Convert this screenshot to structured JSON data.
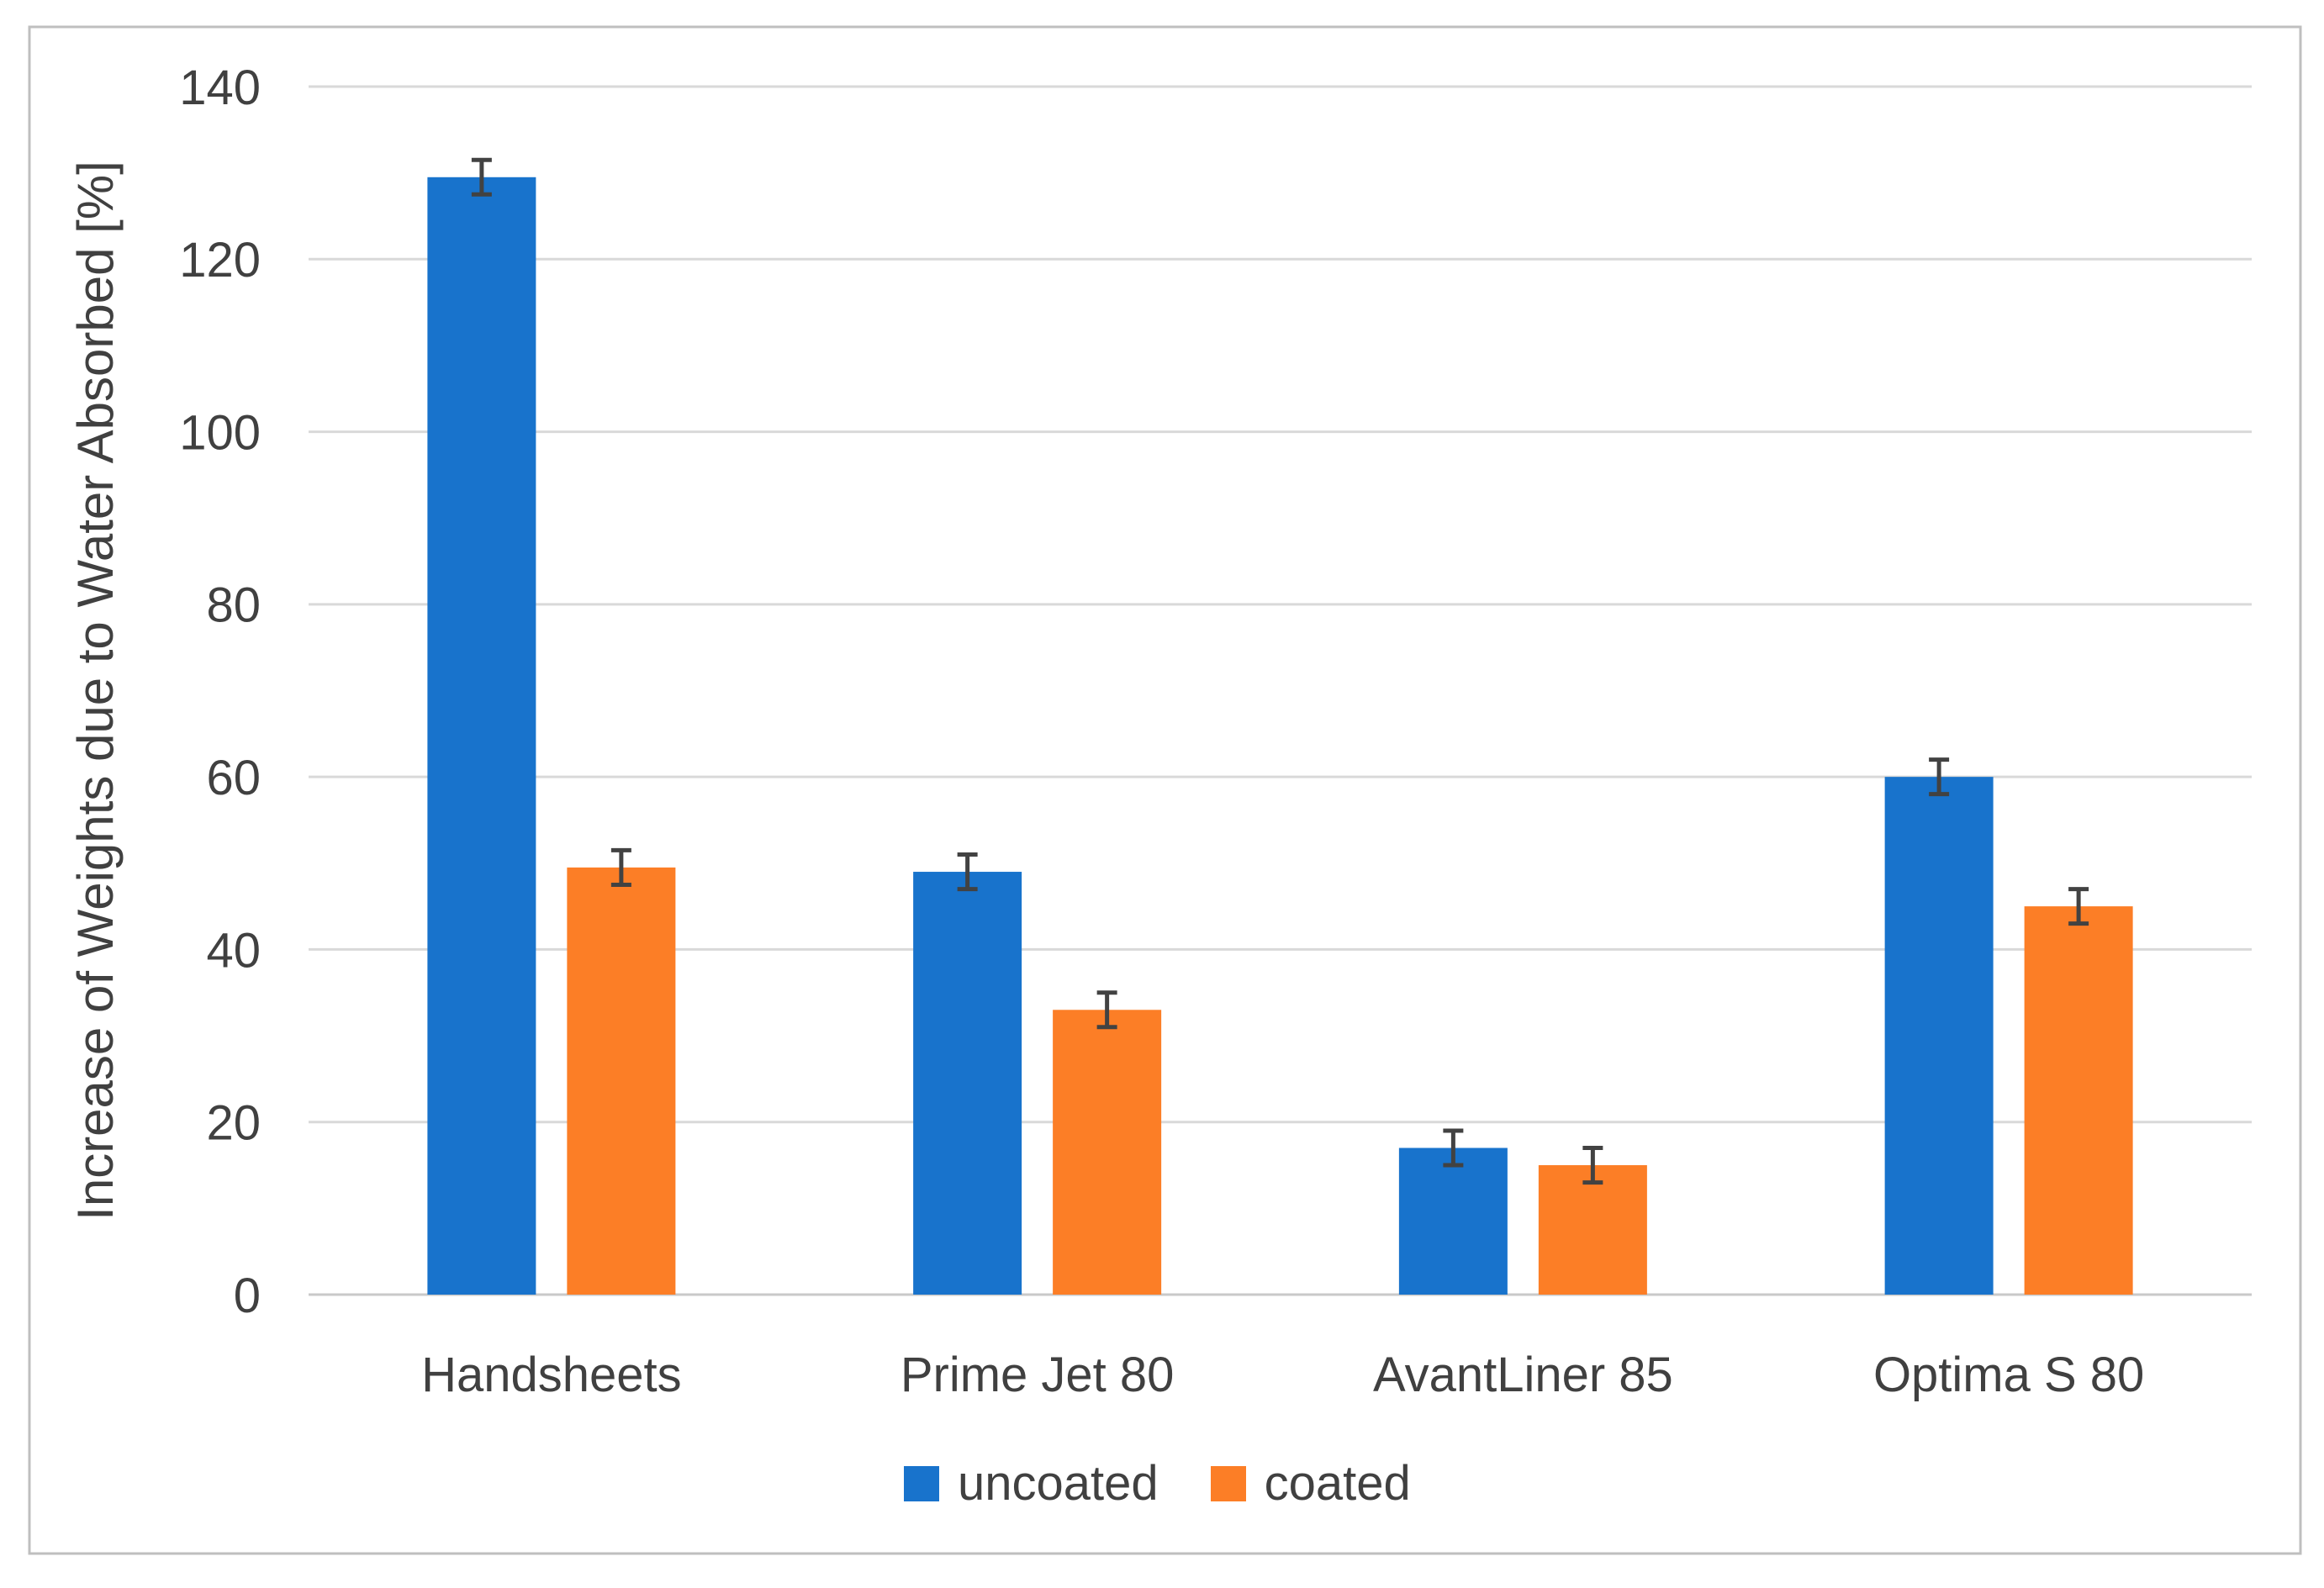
{
  "figure": {
    "background": "#ffffff",
    "border_color": "#bfbfbf",
    "text_color": "#404040",
    "gridline_color": "#d9d9d9",
    "axis_line_color": "#c9c9c9",
    "error_bar_color": "#424242"
  },
  "chart_data": {
    "type": "bar",
    "title": "",
    "categories": [
      "Handsheets",
      "Prime Jet 80",
      "AvantLiner 85",
      "Optima S 80"
    ],
    "series": [
      {
        "name": "uncoated",
        "color": "#1873cc",
        "values": [
          129.5,
          49,
          17,
          60
        ],
        "errors": [
          2,
          2,
          2,
          2
        ]
      },
      {
        "name": "coated",
        "color": "#fc7e26",
        "values": [
          49.5,
          33,
          15,
          45
        ],
        "errors": [
          2,
          2,
          2,
          2
        ]
      }
    ],
    "xlabel": "",
    "ylabel": "Increase of Weights due to Water Absorbed [%]",
    "ylim": [
      0,
      140
    ],
    "ytick_interval": 20,
    "yticks": [
      0,
      20,
      40,
      60,
      80,
      100,
      120,
      140
    ],
    "grid": "horizontal",
    "legend_position": "bottom",
    "error_bars": true
  }
}
